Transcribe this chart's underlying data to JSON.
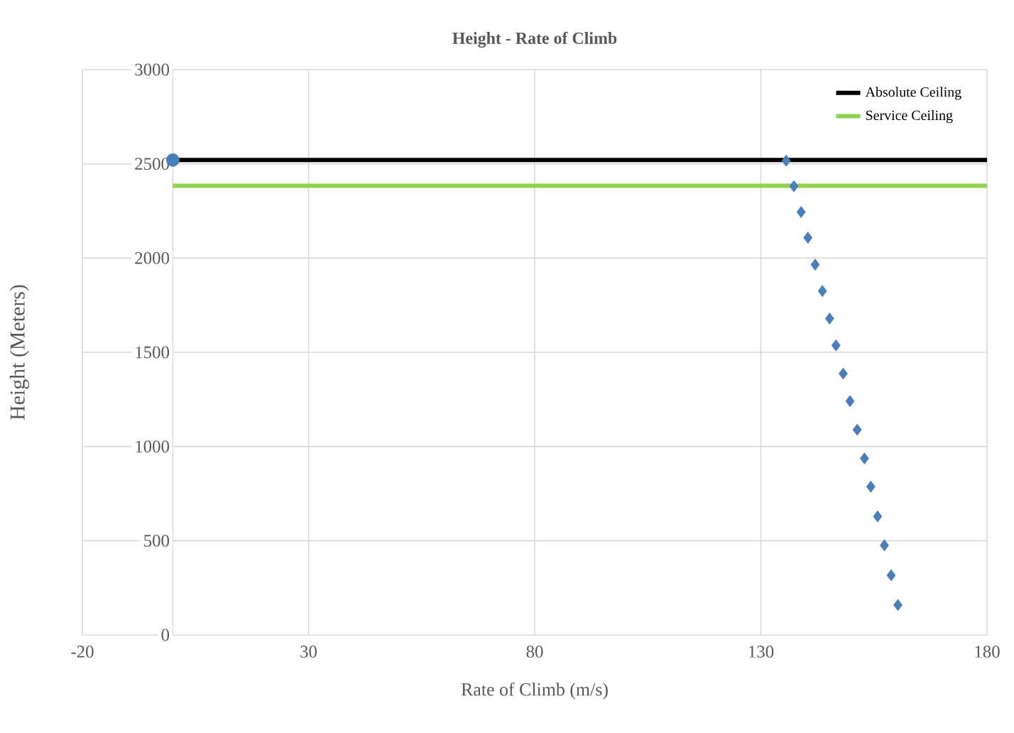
{
  "chart_data": {
    "type": "scatter",
    "title": "Height - Rate of Climb",
    "xlabel": "Rate of Climb (m/s)",
    "ylabel": "Height (Meters)",
    "xlim": [
      -20,
      180
    ],
    "xticks": [
      -20,
      30,
      80,
      130,
      180
    ],
    "ylim": [
      0,
      3000
    ],
    "yticks": [
      0,
      500,
      1000,
      1500,
      2000,
      2500,
      3000
    ],
    "grid": true,
    "legend": "top right",
    "series": [
      {
        "name": "Absolute Ceiling",
        "type": "line",
        "color": "#000000",
        "x": [
          0,
          180
        ],
        "values": [
          2520,
          2520
        ],
        "marker": "none",
        "line_style": "solid"
      },
      {
        "name": "Service Ceiling",
        "type": "line",
        "color": "#92d050",
        "x": [
          0,
          180
        ],
        "values": [
          2384,
          2384
        ],
        "marker": "none",
        "line_style": "solid"
      },
      {
        "color": "#4a7ebb",
        "marker": "diamond",
        "x": [
          135.6,
          137.3,
          138.9,
          140.4,
          142.0,
          143.6,
          145.2,
          146.6,
          148.2,
          149.7,
          151.3,
          152.9,
          154.3,
          155.8,
          157.3,
          158.8,
          160.3
        ],
        "values": [
          2517,
          2381,
          2244,
          2108,
          1965,
          1825,
          1679,
          1537,
          1387,
          1241,
          1089,
          937,
          787,
          629,
          476,
          317,
          159
        ]
      },
      {
        "color": "#4a7ebb",
        "marker": "circle",
        "x": [
          0
        ],
        "values": [
          2520
        ]
      }
    ]
  }
}
